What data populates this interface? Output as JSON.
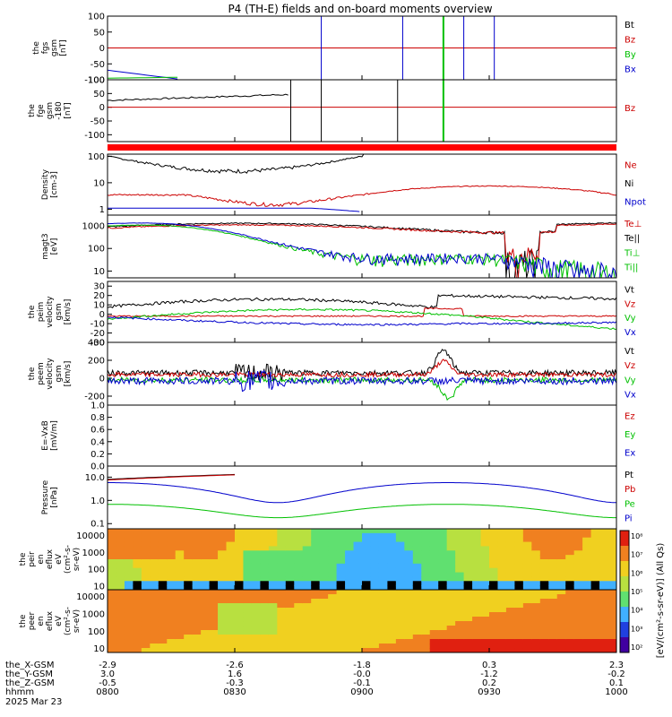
{
  "title": "P4 (TH-E) fields and on-board moments overview",
  "colors": {
    "black": "#000000",
    "red": "#cc0000",
    "green": "#00c000",
    "blue": "#0000cc"
  },
  "colorbar": {
    "label": "[eV/(cm²-s-sr-eV)] (All Qs)",
    "unit_label": "eV/(cm²-s-sr-eV)",
    "ticks": [
      "10⁸",
      "10⁷",
      "10⁶",
      "10⁵",
      "10⁴",
      "10³",
      "10²"
    ]
  },
  "chart_data": [
    {
      "type": "line",
      "ylabel": [
        "the",
        "fgs",
        "gsm",
        "[nT]"
      ],
      "ylim": [
        -100,
        100
      ],
      "yticks": [
        "100",
        "50",
        "0",
        "-50",
        "-100"
      ],
      "legend": [
        {
          "name": "Bt",
          "color": "#000000"
        },
        {
          "name": "Bz",
          "color": "#cc0000"
        },
        {
          "name": "By",
          "color": "#00c000"
        },
        {
          "name": "Bx",
          "color": "#0000cc"
        }
      ]
    },
    {
      "type": "line",
      "ylabel": [
        "the",
        "fge",
        "gsm",
        "-180",
        "[nT]"
      ],
      "ylim": [
        -125,
        100
      ],
      "yticks": [
        "100",
        "50",
        "0",
        "-50",
        "-100"
      ],
      "legend": [
        {
          "name": "Bz",
          "color": "#cc0000"
        }
      ]
    },
    {
      "type": "line",
      "ylabel": [
        "Density",
        "[cm-3]"
      ],
      "yscale": "log",
      "ylim": [
        0.6,
        120
      ],
      "yticks": [
        "100",
        "10",
        "1"
      ],
      "legend": [
        {
          "name": "Ne",
          "color": "#cc0000"
        },
        {
          "name": "Ni",
          "color": "#000000"
        },
        {
          "name": "Npot",
          "color": "#0000cc"
        }
      ]
    },
    {
      "type": "line",
      "ylabel": [
        "magt3",
        "[eV]"
      ],
      "yscale": "log",
      "ylim": [
        5,
        3000
      ],
      "yticks": [
        "1000",
        "100",
        "10"
      ],
      "legend": [
        {
          "name": "Te⊥",
          "color": "#cc0000"
        },
        {
          "name": "Te||",
          "color": "#000000"
        },
        {
          "name": "Ti⊥",
          "color": "#00c000"
        },
        {
          "name": "Ti||",
          "color": "#00c000"
        }
      ]
    },
    {
      "type": "line",
      "ylabel": [
        "the",
        "peim",
        "velocity",
        "gsm",
        "[km/s]"
      ],
      "ylim": [
        -30,
        35
      ],
      "yticks": [
        "30",
        "20",
        "10",
        "0",
        "-10",
        "-20",
        "-30"
      ],
      "legend": [
        {
          "name": "Vt",
          "color": "#000000"
        },
        {
          "name": "Vz",
          "color": "#cc0000"
        },
        {
          "name": "Vy",
          "color": "#00c000"
        },
        {
          "name": "Vx",
          "color": "#0000cc"
        }
      ]
    },
    {
      "type": "line",
      "ylabel": [
        "the",
        "peem",
        "velocity",
        "gsm",
        "[km/s]"
      ],
      "ylim": [
        -300,
        400
      ],
      "yticks": [
        "400",
        "200",
        "0",
        "-200"
      ],
      "legend": [
        {
          "name": "Vt",
          "color": "#000000"
        },
        {
          "name": "Vz",
          "color": "#cc0000"
        },
        {
          "name": "Vy",
          "color": "#00c000"
        },
        {
          "name": "Vx",
          "color": "#0000cc"
        }
      ]
    },
    {
      "type": "line",
      "ylabel": [
        "E=-VxB",
        "[mV/m]"
      ],
      "ylim": [
        0,
        1
      ],
      "yticks": [
        "1.0",
        "0.8",
        "0.6",
        "0.4",
        "0.2",
        "0.0"
      ],
      "legend": [
        {
          "name": "Ez",
          "color": "#cc0000"
        },
        {
          "name": "Ey",
          "color": "#00c000"
        },
        {
          "name": "Ex",
          "color": "#0000cc"
        }
      ]
    },
    {
      "type": "line",
      "ylabel": [
        "Pressure",
        "[nPa]"
      ],
      "yscale": "log",
      "ylim": [
        0.06,
        30
      ],
      "yticks": [
        "10.0",
        "1.0",
        "0.1"
      ],
      "legend": [
        {
          "name": "Pt",
          "color": "#000000"
        },
        {
          "name": "Pb",
          "color": "#cc0000"
        },
        {
          "name": "Pe",
          "color": "#00c000"
        },
        {
          "name": "Pi",
          "color": "#0000cc"
        }
      ]
    },
    {
      "type": "heatmap",
      "ylabel": [
        "the",
        "peir",
        "en",
        "eflux",
        "eV",
        "(cm²-s-",
        "sr-eV)"
      ],
      "yscale": "log",
      "ylim": [
        6,
        25000
      ],
      "yticks": [
        "10000",
        "1000",
        "100",
        "10"
      ]
    },
    {
      "type": "heatmap",
      "ylabel": [
        "the",
        "peer",
        "en",
        "eflux",
        "eV",
        "(cm²-s-",
        "sr-eV)"
      ],
      "yscale": "log",
      "ylim": [
        6,
        25000
      ],
      "yticks": [
        "10000",
        "1000",
        "100",
        "10"
      ]
    }
  ],
  "xaxis": {
    "times": [
      "0800",
      "0830",
      "0900",
      "0930",
      "1000"
    ],
    "rows": [
      {
        "label": "the_X-GSM",
        "values": [
          "-2.9",
          "-2.6",
          "-1.8",
          "0.3",
          "2.3"
        ]
      },
      {
        "label": "the_Y-GSM",
        "values": [
          "3.0",
          "1.6",
          "-0.0",
          "-1.2",
          "-0.2"
        ]
      },
      {
        "label": "the_Z-GSM",
        "values": [
          "-0.5",
          "-0.3",
          "-0.1",
          "0.2",
          "0.1"
        ]
      },
      {
        "label": "hhmm",
        "values": [
          "0800",
          "0830",
          "0900",
          "0930",
          "1000"
        ]
      }
    ],
    "date": "2025 Mar 23"
  }
}
